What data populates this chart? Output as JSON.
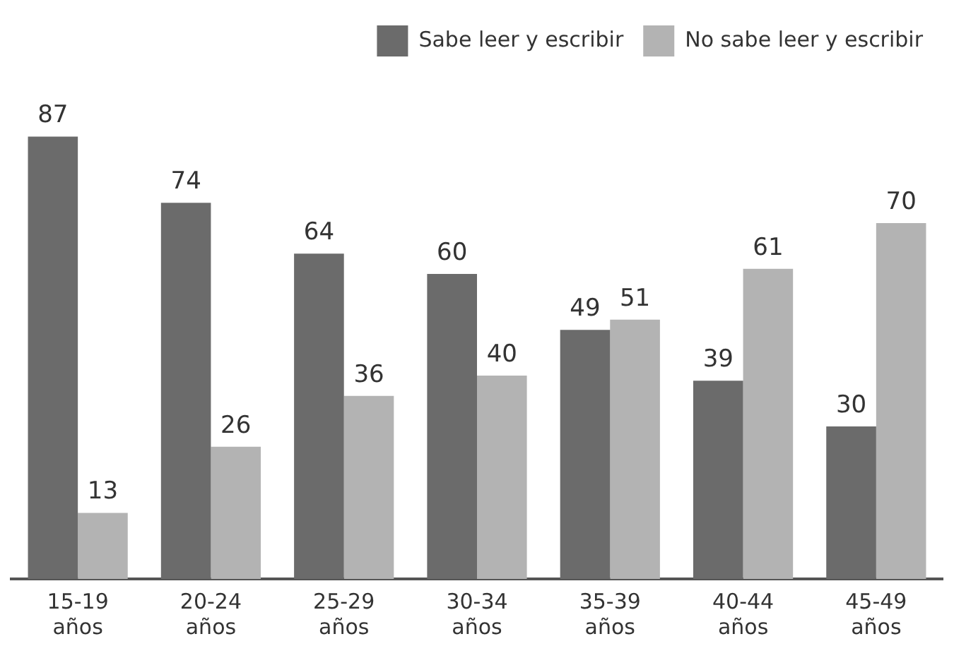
{
  "chart_data": {
    "type": "bar",
    "categories": [
      "15-19 años",
      "20-24 años",
      "25-29 años",
      "30-34 años",
      "35-39 años",
      "40-44 años",
      "45-49 años"
    ],
    "series": [
      {
        "name": "Sabe leer y escribir",
        "color": "#6b6b6b",
        "values": [
          87,
          74,
          64,
          60,
          49,
          39,
          30
        ]
      },
      {
        "name": "No sabe leer y escribir",
        "color": "#b3b3b3",
        "values": [
          13,
          26,
          36,
          40,
          51,
          61,
          70
        ]
      }
    ],
    "data_labels": true,
    "legend": "top right",
    "grid": false
  }
}
